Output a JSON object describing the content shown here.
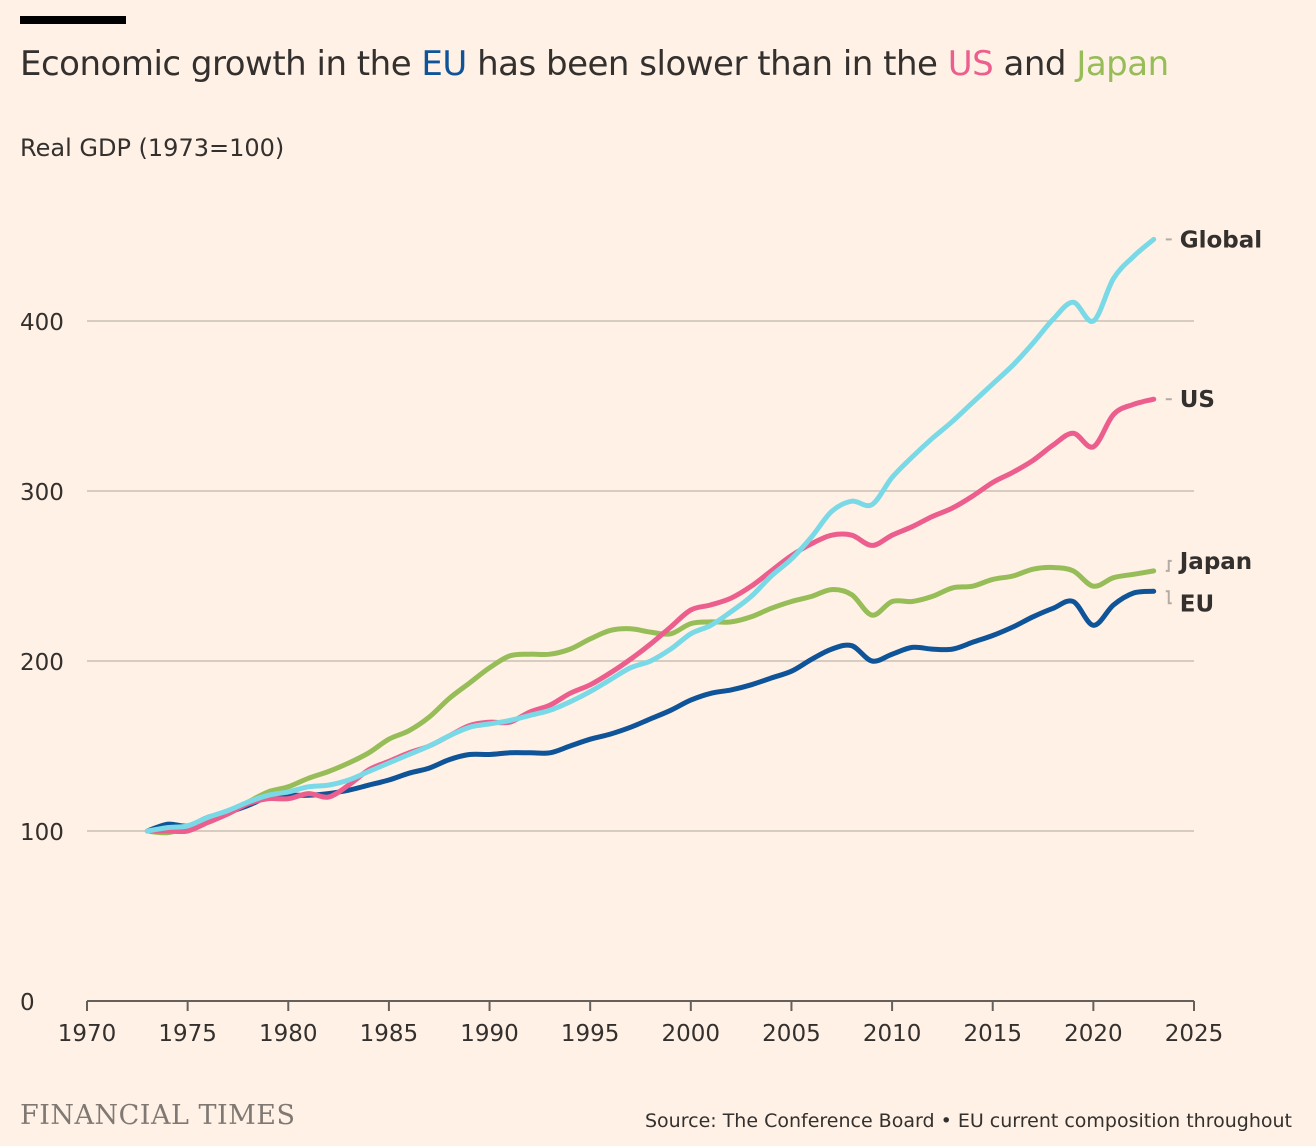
{
  "header": {
    "title_parts": [
      {
        "text": "Economic growth in the ",
        "color": "#33302e"
      },
      {
        "text": "EU",
        "color": "#0f5499"
      },
      {
        "text": " has been slower than in the ",
        "color": "#33302e"
      },
      {
        "text": "US",
        "color": "#eb5e8d"
      },
      {
        "text": " and ",
        "color": "#33302e"
      },
      {
        "text": "Japan",
        "color": "#96bd58"
      }
    ],
    "subtitle": "Real GDP (1973=100)"
  },
  "footer": {
    "brand": "FINANCIAL TIMES",
    "source": "Source: The Conference Board • EU current composition throughout"
  },
  "chart_data": {
    "type": "line",
    "title": "Economic growth in the EU has been slower than in the US and Japan",
    "subtitle": "Real GDP (1973=100)",
    "xlabel": "",
    "ylabel": "",
    "xlim": [
      1970,
      2025
    ],
    "ylim": [
      0,
      450
    ],
    "xticks": [
      1970,
      1975,
      1980,
      1985,
      1990,
      1995,
      2000,
      2005,
      2010,
      2015,
      2020,
      2025
    ],
    "yticks": [
      0,
      100,
      200,
      300,
      400
    ],
    "grid": "horizontal",
    "legend": "direct-labels-right",
    "x": [
      1973,
      1974,
      1975,
      1976,
      1977,
      1978,
      1979,
      1980,
      1981,
      1982,
      1983,
      1984,
      1985,
      1986,
      1987,
      1988,
      1989,
      1990,
      1991,
      1992,
      1993,
      1994,
      1995,
      1996,
      1997,
      1998,
      1999,
      2000,
      2001,
      2002,
      2003,
      2004,
      2005,
      2006,
      2007,
      2008,
      2009,
      2010,
      2011,
      2012,
      2013,
      2014,
      2015,
      2016,
      2017,
      2018,
      2019,
      2020,
      2021,
      2022,
      2023
    ],
    "series": [
      {
        "name": "Global",
        "color": "#7ad9e6",
        "values": [
          100,
          102,
          103,
          108,
          112,
          117,
          121,
          123,
          126,
          127,
          130,
          135,
          140,
          145,
          150,
          156,
          161,
          163,
          165,
          168,
          171,
          176,
          182,
          189,
          196,
          200,
          207,
          216,
          221,
          229,
          238,
          250,
          260,
          273,
          288,
          294,
          292,
          308,
          320,
          331,
          341,
          352,
          363,
          374,
          387,
          401,
          411,
          400,
          425,
          438,
          448
        ]
      },
      {
        "name": "US",
        "color": "#eb5e8d",
        "values": [
          100,
          100,
          100,
          105,
          110,
          116,
          119,
          119,
          122,
          120,
          127,
          136,
          141,
          146,
          150,
          156,
          162,
          164,
          164,
          170,
          174,
          181,
          186,
          193,
          201,
          210,
          220,
          230,
          233,
          237,
          244,
          253,
          262,
          269,
          274,
          274,
          268,
          274,
          279,
          285,
          290,
          297,
          305,
          311,
          318,
          327,
          334,
          326,
          345,
          351,
          354
        ]
      },
      {
        "name": "Japan",
        "color": "#96bd58",
        "values": [
          100,
          99,
          102,
          106,
          111,
          117,
          123,
          126,
          131,
          135,
          140,
          146,
          154,
          159,
          167,
          178,
          187,
          196,
          203,
          204,
          204,
          207,
          213,
          218,
          219,
          217,
          216,
          222,
          223,
          223,
          226,
          231,
          235,
          238,
          242,
          239,
          227,
          235,
          235,
          238,
          243,
          244,
          248,
          250,
          254,
          255,
          253,
          244,
          249,
          251,
          253
        ]
      },
      {
        "name": "EU",
        "color": "#0f5499",
        "values": [
          100,
          104,
          103,
          108,
          111,
          115,
          120,
          121,
          121,
          122,
          124,
          127,
          130,
          134,
          137,
          142,
          145,
          145,
          146,
          146,
          146,
          150,
          154,
          157,
          161,
          166,
          171,
          177,
          181,
          183,
          186,
          190,
          194,
          201,
          207,
          209,
          200,
          204,
          208,
          207,
          207,
          211,
          215,
          220,
          226,
          231,
          235,
          221,
          233,
          240,
          241
        ]
      }
    ]
  }
}
